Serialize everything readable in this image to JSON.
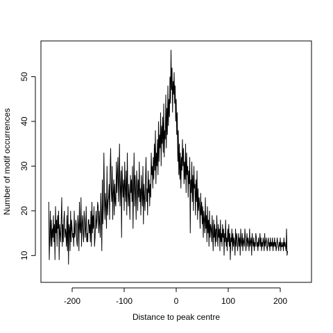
{
  "chart_data": {
    "type": "line",
    "title": "",
    "xlabel": "Distance to peak centre",
    "ylabel": "Number of motif occurrences",
    "xlim": [
      -260,
      260
    ],
    "ylim": [
      4,
      58
    ],
    "grid": false,
    "legend": "none",
    "line_color": "#000000",
    "xticks": [
      -200,
      -100,
      0,
      100,
      200
    ],
    "xtick_labels": [
      "-200",
      "-100",
      "0",
      "100",
      "200"
    ],
    "yticks": [
      10,
      20,
      30,
      40,
      50
    ],
    "ytick_labels": [
      "10",
      "20",
      "30",
      "40",
      "50"
    ],
    "x_start": -245,
    "x_step": 1,
    "values": [
      22,
      9,
      14,
      20,
      12,
      18,
      12,
      16,
      14,
      19,
      13,
      17,
      9,
      21,
      15,
      18,
      12,
      19,
      16,
      20,
      9,
      17,
      15,
      13,
      18,
      23,
      12,
      17,
      13,
      18,
      20,
      14,
      16,
      15,
      12,
      19,
      11,
      21,
      8,
      17,
      16,
      11,
      20,
      13,
      18,
      16,
      14,
      15,
      12,
      20,
      14,
      15,
      18,
      17,
      13,
      12,
      19,
      17,
      11,
      22,
      16,
      15,
      23,
      12,
      17,
      19,
      15,
      13,
      20,
      18,
      14,
      16,
      21,
      13,
      15,
      13,
      18,
      18,
      15,
      17,
      13,
      20,
      12,
      22,
      15,
      19,
      16,
      21,
      12,
      14,
      17,
      20,
      16,
      18,
      22,
      21,
      15,
      20,
      17,
      14,
      24,
      19,
      11,
      27,
      17,
      21,
      33,
      23,
      18,
      24,
      21,
      16,
      30,
      19,
      22,
      23,
      26,
      18,
      29,
      34,
      25,
      22,
      30,
      18,
      24,
      27,
      19,
      26,
      22,
      21,
      31,
      24,
      28,
      32,
      22,
      27,
      35,
      21,
      25,
      29,
      14,
      30,
      26,
      23,
      27,
      20,
      31,
      25,
      22,
      29,
      19,
      33,
      24,
      21,
      26,
      23,
      18,
      28,
      24,
      27,
      22,
      30,
      16,
      25,
      33,
      21,
      28,
      24,
      18,
      29,
      26,
      20,
      27,
      23,
      31,
      22,
      25,
      19,
      28,
      24,
      21,
      30,
      17,
      26,
      23,
      20,
      27,
      32,
      22,
      25,
      19,
      29,
      24,
      27,
      21,
      26,
      23,
      33,
      28,
      30,
      25,
      32,
      27,
      35,
      29,
      38,
      26,
      33,
      30,
      36,
      28,
      40,
      31,
      37,
      34,
      42,
      30,
      39,
      35,
      41,
      33,
      44,
      32,
      38,
      36,
      46,
      34,
      43,
      37,
      48,
      39,
      45,
      41,
      50,
      44,
      56,
      47,
      52,
      42,
      49,
      46,
      51,
      44,
      48,
      40,
      45,
      37,
      42,
      31,
      38,
      28,
      35,
      27,
      33,
      25,
      32,
      29,
      36,
      30,
      34,
      26,
      31,
      27,
      35,
      24,
      33,
      28,
      30,
      23,
      29,
      26,
      32,
      15,
      27,
      24,
      31,
      22,
      28,
      20,
      30,
      25,
      26,
      19,
      27,
      22,
      29,
      18,
      25,
      20,
      23,
      21,
      16,
      24,
      19,
      22,
      17,
      21,
      14,
      20,
      18,
      15,
      23,
      16,
      19,
      13,
      21,
      15,
      18,
      12,
      20,
      14,
      17,
      16,
      13,
      19,
      15,
      11,
      18,
      14,
      17,
      12,
      16,
      13,
      19,
      15,
      12,
      17,
      14,
      16,
      11,
      18,
      13,
      15,
      12,
      17,
      14,
      16,
      10,
      15,
      13,
      18,
      12,
      14,
      11,
      16,
      13,
      17,
      12,
      15,
      9,
      14,
      13,
      16,
      11,
      15,
      12,
      14,
      13,
      10,
      16,
      12,
      15,
      14,
      11,
      13,
      15,
      12,
      14,
      10,
      16,
      13,
      12,
      15,
      11,
      14,
      13,
      12,
      16,
      14,
      11,
      13,
      15,
      12,
      14,
      13,
      11,
      16,
      12,
      13,
      14,
      10,
      15,
      13,
      12,
      14,
      11,
      13,
      12,
      15,
      14,
      12,
      13,
      11,
      14,
      12,
      13,
      15,
      12,
      14,
      11,
      13,
      12,
      14,
      13,
      11,
      15,
      12,
      13,
      14,
      12,
      11,
      13,
      14,
      12,
      13,
      11,
      14,
      12,
      13,
      12,
      14,
      11,
      13,
      12,
      14,
      12,
      13,
      11,
      12,
      14,
      13,
      12,
      11,
      13,
      12,
      14,
      11,
      13,
      12,
      12,
      13,
      11,
      14,
      12,
      13,
      12,
      11,
      16,
      10,
      11
    ]
  }
}
